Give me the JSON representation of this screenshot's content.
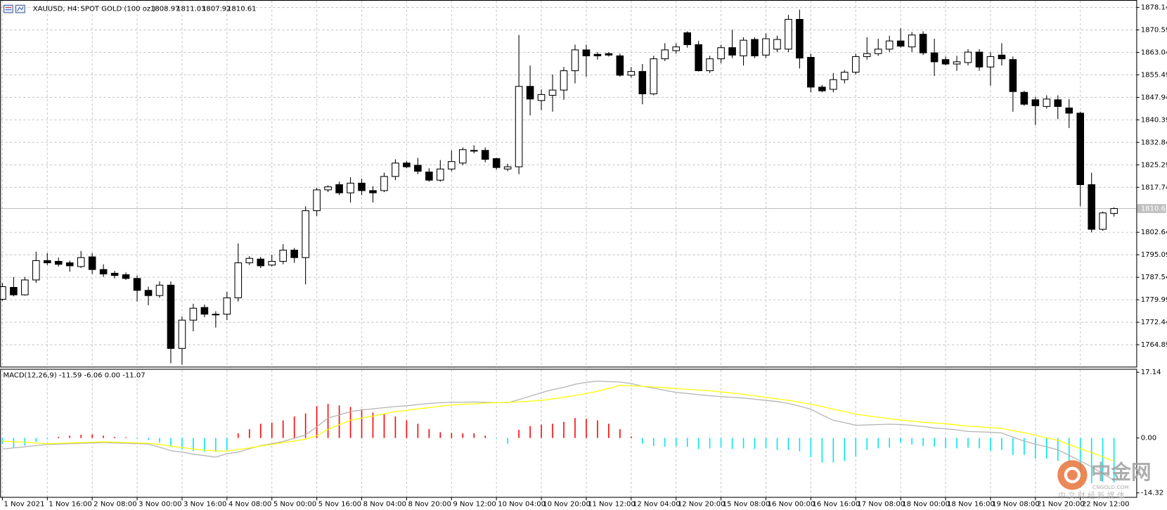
{
  "chart_data": {
    "type": "candlestick",
    "symbol": "XAUUSD, H4:",
    "description": "SPOT GOLD (100 oz.)",
    "ylim": [
      1757.39,
      1880.64
    ],
    "yticks": [
      1878.14,
      1870.59,
      1863.04,
      1855.49,
      1847.94,
      1840.39,
      1832.84,
      1825.29,
      1817.74,
      1802.64,
      1795.09,
      1787.54,
      1779.99,
      1772.44,
      1764.89
    ],
    "grid": true,
    "up_color": "#ffffff",
    "down_color": "#000000",
    "x_labels": [
      "1 Nov 2021",
      "1 Nov 16:00",
      "2 Nov 08:00",
      "3 Nov 00:00",
      "3 Nov 16:00",
      "4 Nov 08:00",
      "5 Nov 00:00",
      "5 Nov 16:00",
      "8 Nov 04:00",
      "8 Nov 20:00",
      "9 Nov 12:00",
      "10 Nov 04:00",
      "10 Nov 20:00",
      "11 Nov 12:00",
      "12 Nov 04:00",
      "12 Nov 20:00",
      "15 Nov 08:00",
      "16 Nov 00:00",
      "16 Nov 16:00",
      "17 Nov 08:00",
      "18 Nov 00:00",
      "18 Nov 16:00",
      "19 Nov 08:00",
      "21 Nov 20:00",
      "22 Nov 12:00"
    ],
    "open": [
      1780.14,
      1784.14,
      1781.64,
      1786.64,
      1793.14,
      1792.89,
      1792.39,
      1791.14,
      1794.39,
      1790.14,
      1788.89,
      1788.39,
      1787.14,
      1783.14,
      1781.39,
      1784.89,
      1763.64,
      1773.14,
      1777.39,
      1775.14,
      1775.14,
      1780.64,
      1792.39,
      1793.64,
      1791.64,
      1792.89,
      1796.64,
      1794.14,
      1809.89,
      1816.89,
      1818.64,
      1815.89,
      1819.14,
      1816.64,
      1816.64,
      1821.39,
      1825.89,
      1825.14,
      1822.89,
      1820.14,
      1823.89,
      1825.89,
      1830.14,
      1830.14,
      1827.39,
      1823.89,
      1824.64,
      1851.64,
      1846.89,
      1848.64,
      1850.39,
      1856.89,
      1863.89,
      1862.39,
      1862.64,
      1861.89,
      1855.39,
      1856.64,
      1849.14,
      1860.89,
      1863.64,
      1869.64,
      1865.64,
      1856.89,
      1860.89,
      1864.64,
      1861.89,
      1867.39,
      1862.14,
      1864.14,
      1864.14,
      1874.14,
      1861.39,
      1851.39,
      1850.64,
      1853.89,
      1856.39,
      1861.64,
      1862.64,
      1864.14,
      1866.89,
      1864.89,
      1869.14,
      1862.89,
      1860.64,
      1859.14,
      1859.64,
      1863.14,
      1858.14,
      1862.14,
      1860.64,
      1849.64,
      1847.14,
      1844.89,
      1847.14,
      1844.39,
      1842.64,
      1818.64,
      1803.64,
      1808.97
    ],
    "high": [
      1785.64,
      1787.64,
      1787.64,
      1796.14,
      1795.64,
      1794.14,
      1793.14,
      1796.39,
      1795.64,
      1791.89,
      1789.64,
      1789.14,
      1788.14,
      1784.39,
      1786.14,
      1786.14,
      1774.39,
      1778.64,
      1778.39,
      1776.14,
      1782.64,
      1798.89,
      1794.64,
      1794.39,
      1795.14,
      1798.64,
      1797.39,
      1811.39,
      1817.64,
      1818.39,
      1819.64,
      1821.14,
      1820.64,
      1818.14,
      1822.64,
      1827.14,
      1826.64,
      1827.64,
      1824.14,
      1826.89,
      1830.14,
      1831.14,
      1831.89,
      1831.14,
      1827.64,
      1825.64,
      1868.89,
      1858.64,
      1850.64,
      1855.64,
      1858.14,
      1865.64,
      1865.64,
      1863.14,
      1863.14,
      1862.64,
      1858.14,
      1859.14,
      1861.89,
      1866.14,
      1866.14,
      1870.14,
      1866.89,
      1861.89,
      1865.64,
      1870.64,
      1868.14,
      1868.14,
      1869.39,
      1868.64,
      1875.64,
      1877.39,
      1862.64,
      1852.14,
      1856.14,
      1857.14,
      1862.64,
      1868.14,
      1867.64,
      1868.64,
      1871.14,
      1869.89,
      1870.14,
      1867.64,
      1861.64,
      1861.89,
      1864.14,
      1864.14,
      1863.14,
      1866.14,
      1861.64,
      1850.14,
      1848.14,
      1848.64,
      1848.64,
      1847.39,
      1843.14,
      1822.64,
      1809.64,
      1811.03
    ],
    "low": [
      1779.64,
      1781.14,
      1781.39,
      1785.64,
      1791.64,
      1791.14,
      1789.39,
      1790.64,
      1788.64,
      1787.64,
      1787.14,
      1786.64,
      1779.39,
      1778.14,
      1780.64,
      1758.64,
      1758.14,
      1769.39,
      1774.14,
      1770.64,
      1773.14,
      1779.39,
      1791.64,
      1790.64,
      1791.14,
      1791.89,
      1792.39,
      1785.14,
      1808.14,
      1816.14,
      1815.14,
      1812.64,
      1815.14,
      1812.64,
      1816.14,
      1820.14,
      1824.14,
      1822.14,
      1819.64,
      1819.64,
      1823.14,
      1825.14,
      1829.14,
      1826.14,
      1823.64,
      1823.14,
      1822.14,
      1841.89,
      1843.64,
      1843.14,
      1847.14,
      1852.64,
      1854.89,
      1860.64,
      1861.64,
      1854.89,
      1854.64,
      1845.64,
      1848.64,
      1860.14,
      1862.64,
      1864.64,
      1856.64,
      1856.14,
      1859.39,
      1861.14,
      1858.64,
      1861.14,
      1861.14,
      1863.14,
      1863.14,
      1857.64,
      1849.64,
      1849.64,
      1849.64,
      1852.64,
      1855.64,
      1860.64,
      1861.89,
      1863.14,
      1864.64,
      1863.14,
      1862.14,
      1855.14,
      1858.64,
      1856.89,
      1858.64,
      1856.89,
      1851.89,
      1858.64,
      1843.14,
      1845.14,
      1838.64,
      1844.14,
      1840.64,
      1837.64,
      1811.39,
      1802.64,
      1803.14,
      1807.92
    ],
    "close": [
      1784.39,
      1781.64,
      1786.64,
      1793.14,
      1792.39,
      1791.89,
      1791.39,
      1794.14,
      1790.14,
      1788.64,
      1788.14,
      1787.14,
      1783.14,
      1781.39,
      1784.89,
      1763.64,
      1773.14,
      1777.14,
      1775.14,
      1774.89,
      1780.64,
      1792.39,
      1793.89,
      1791.39,
      1792.89,
      1796.64,
      1794.14,
      1809.89,
      1816.89,
      1817.89,
      1815.89,
      1819.14,
      1816.64,
      1815.89,
      1821.39,
      1825.89,
      1824.64,
      1823.14,
      1820.14,
      1823.89,
      1826.39,
      1830.39,
      1829.89,
      1827.14,
      1824.39,
      1824.64,
      1851.64,
      1847.39,
      1848.89,
      1850.39,
      1856.89,
      1863.89,
      1861.89,
      1861.89,
      1862.14,
      1855.39,
      1856.64,
      1849.14,
      1860.89,
      1863.89,
      1864.89,
      1865.64,
      1856.89,
      1860.89,
      1864.64,
      1862.14,
      1867.14,
      1861.89,
      1867.64,
      1867.39,
      1874.14,
      1861.14,
      1851.39,
      1850.14,
      1853.89,
      1856.39,
      1861.64,
      1862.64,
      1864.14,
      1866.89,
      1865.14,
      1868.89,
      1862.89,
      1859.89,
      1859.14,
      1859.89,
      1863.14,
      1858.14,
      1861.64,
      1860.89,
      1849.89,
      1845.64,
      1845.14,
      1847.39,
      1844.89,
      1842.64,
      1818.64,
      1803.64,
      1809.14,
      1810.61
    ],
    "macd": {
      "header": "MACD(12,26,9) -11.59 -6.06 0.00 -11.07",
      "ylim": [
        -15.48,
        17.91
      ],
      "yticks": [
        17.14,
        {
          "value": 0,
          "label": "0.00"
        },
        -14.32
      ],
      "histogram": {
        "up_color": "#ff0000",
        "down_color": "#00e5ee",
        "values": [
          -1.5,
          -2.5,
          -2.0,
          -1.0,
          -0.3,
          0.3,
          0.6,
          0.8,
          0.9,
          0.6,
          0.3,
          0.2,
          -0.2,
          -0.5,
          -1.2,
          -2.0,
          -3.0,
          -3.4,
          -3.6,
          -3.6,
          -3.2,
          1.2,
          2.3,
          3.7,
          4.0,
          4.6,
          5.6,
          6.4,
          8.3,
          8.9,
          8.5,
          8.1,
          7.5,
          6.6,
          6.2,
          5.6,
          4.6,
          3.7,
          2.3,
          1.5,
          1.3,
          1.2,
          1.2,
          0.6,
          -0.2,
          -1.5,
          2.1,
          3.1,
          3.5,
          3.7,
          4.2,
          5.2,
          5.0,
          4.6,
          3.7,
          2.3,
          0.4,
          -1.5,
          -2.1,
          -2.3,
          -2.1,
          -2.3,
          -2.9,
          -2.7,
          -2.5,
          -2.9,
          -2.7,
          -2.9,
          -2.7,
          -3.1,
          -3.1,
          -3.5,
          -5.0,
          -6.4,
          -6.4,
          -6.0,
          -4.8,
          -3.1,
          -2.7,
          -2.5,
          -1.3,
          -1.7,
          -2.1,
          -2.3,
          -2.7,
          -2.7,
          -2.5,
          -2.7,
          -3.3,
          -3.1,
          -4.4,
          -4.4,
          -5.4,
          -5.4,
          -6.0,
          -6.4,
          -8.9,
          -11.8,
          -11.4,
          -11.59
        ]
      },
      "series": [
        {
          "color": "#b4b4b4",
          "values": [
            -2.9,
            -2.6,
            -2.3,
            -2.0,
            -1.7,
            -1.6,
            -1.5,
            -1.4,
            -1.3,
            -1.2,
            -1.3,
            -1.4,
            -1.5,
            -1.6,
            -2.4,
            -3.3,
            -3.7,
            -4.2,
            -4.6,
            -5.0,
            -4.1,
            -3.7,
            -2.8,
            -2.0,
            -1.5,
            -0.9,
            -0.1,
            0.8,
            2.9,
            5.2,
            6.0,
            6.9,
            7.3,
            7.6,
            7.9,
            8.2,
            8.4,
            8.7,
            9.0,
            9.2,
            9.3,
            9.3,
            9.4,
            9.3,
            9.2,
            9.2,
            10.0,
            10.9,
            11.8,
            12.6,
            13.2,
            14.0,
            14.5,
            14.8,
            14.7,
            14.6,
            14.2,
            13.5,
            13.0,
            12.4,
            11.9,
            11.6,
            11.3,
            11.0,
            10.8,
            10.6,
            10.4,
            10.1,
            9.8,
            9.5,
            9.0,
            8.3,
            7.5,
            6.0,
            4.6,
            4.0,
            3.3,
            3.4,
            3.5,
            3.6,
            3.5,
            3.3,
            3.0,
            2.6,
            2.4,
            2.1,
            1.7,
            1.6,
            1.5,
            1.3,
            0.2,
            -0.8,
            -1.6,
            -2.3,
            -3.1,
            -4.5,
            -6.0,
            -7.5,
            -9.3,
            -11.07
          ]
        },
        {
          "color": "#ffff00",
          "values": [
            -0.8,
            -1.0,
            -1.1,
            -1.3,
            -1.5,
            -1.4,
            -1.3,
            -1.2,
            -1.1,
            -1.0,
            -1.1,
            -1.2,
            -1.3,
            -1.4,
            -1.7,
            -2.1,
            -2.5,
            -2.9,
            -3.2,
            -3.4,
            -3.4,
            -3.0,
            -2.6,
            -2.1,
            -1.7,
            -1.2,
            -0.8,
            -0.3,
            0.6,
            2.2,
            3.5,
            4.6,
            5.2,
            5.7,
            6.3,
            6.9,
            7.2,
            7.6,
            7.9,
            8.3,
            8.6,
            8.8,
            8.9,
            9.1,
            9.2,
            9.3,
            9.4,
            9.6,
            9.8,
            10.2,
            10.6,
            11.1,
            11.6,
            12.2,
            12.9,
            13.7,
            13.6,
            13.5,
            13.3,
            13.1,
            12.9,
            12.7,
            12.5,
            12.3,
            12.0,
            11.7,
            11.4,
            11.0,
            10.6,
            10.2,
            9.8,
            9.3,
            8.8,
            8.2,
            7.5,
            6.9,
            6.2,
            5.8,
            5.4,
            5.0,
            4.7,
            4.4,
            4.1,
            3.9,
            3.7,
            3.4,
            3.1,
            2.9,
            2.7,
            2.5,
            1.9,
            1.4,
            0.7,
            0.0,
            -0.6,
            -1.7,
            -2.8,
            -3.8,
            -4.9,
            -6.06
          ]
        }
      ]
    },
    "watermark": {
      "brand": "中金网",
      "site": "CNGOLD.COM",
      "tagline": "中 文 财 经 新 媒 体"
    }
  }
}
